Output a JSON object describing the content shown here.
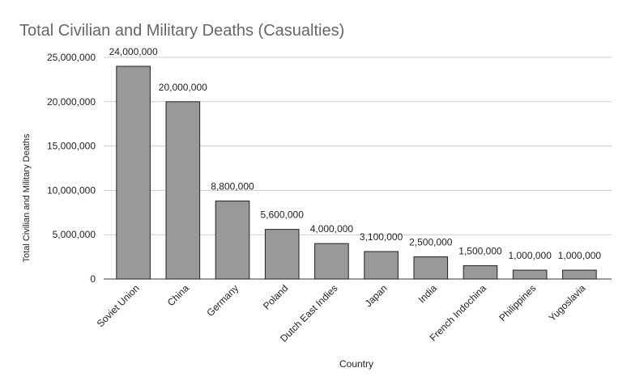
{
  "chart_data": {
    "type": "bar",
    "title": "Total Civilian and Military Deaths (Casualties)",
    "x_label": "Country",
    "y_label": "Total Civilian and Military Deaths",
    "categories": [
      "Soviet Union",
      "China",
      "Germany",
      "Poland",
      "Dutch East Indies",
      "Japan",
      "India",
      "French Indochina",
      "Philippines",
      "Yugoslavia"
    ],
    "values": [
      24000000,
      20000000,
      8800000,
      5600000,
      4000000,
      3100000,
      2500000,
      1500000,
      1000000,
      1000000
    ],
    "value_labels": [
      "24,000,000",
      "20,000,000",
      "8,800,000",
      "5,600,000",
      "4,000,000",
      "3,100,000",
      "2,500,000",
      "1,500,000",
      "1,000,000",
      "1,000,000"
    ],
    "color": "#999999",
    "ylim": [
      0,
      25000000
    ],
    "yticks": [
      {
        "value": 0,
        "label": "0"
      },
      {
        "value": 5000000,
        "label": "5,000,000"
      },
      {
        "value": 10000000,
        "label": "10,000,000"
      },
      {
        "value": 15000000,
        "label": "15,000,000"
      },
      {
        "value": 20000000,
        "label": "20,000,000"
      },
      {
        "value": 25000000,
        "label": "25,000,000"
      }
    ],
    "grid": true
  }
}
